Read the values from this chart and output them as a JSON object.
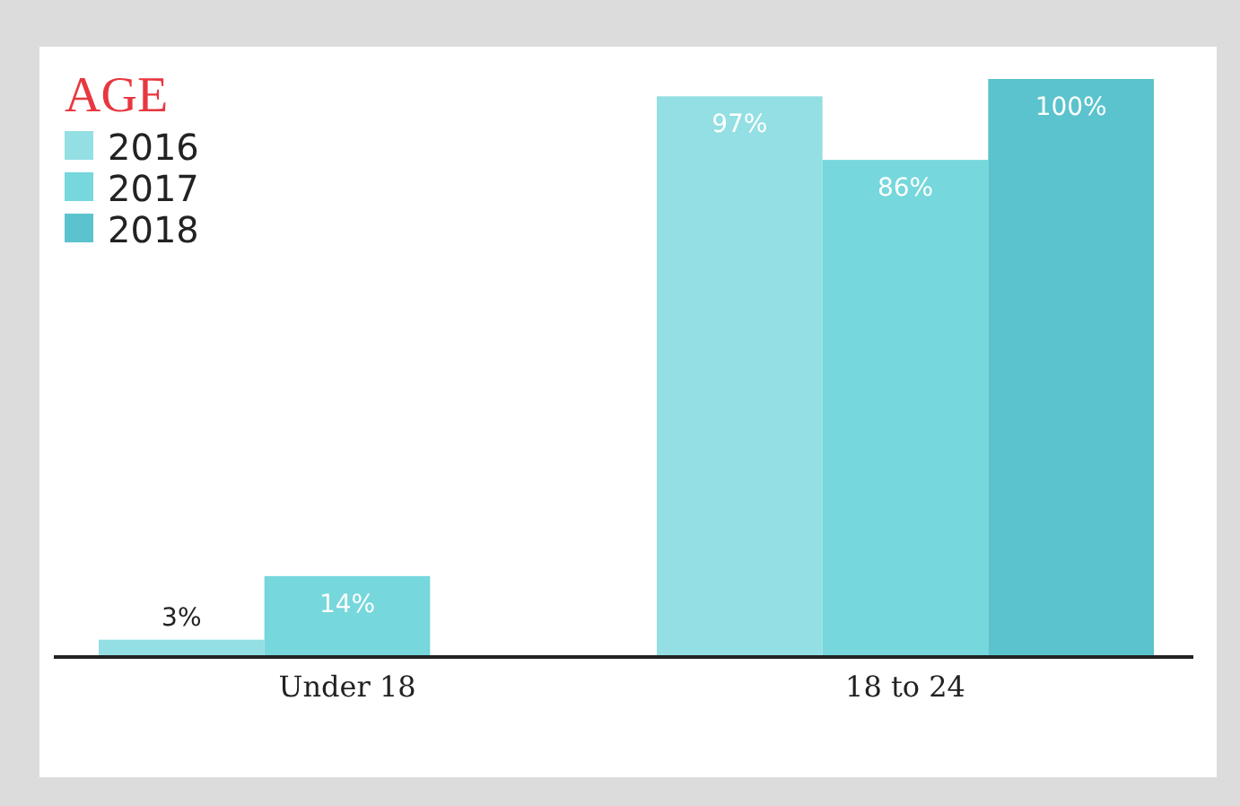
{
  "chart_data": {
    "type": "bar",
    "legend_title": "AGE",
    "legend": "top left",
    "categories": [
      "Under 18",
      "18 to 24"
    ],
    "series": [
      {
        "name": "2016",
        "color": "#93dfe3",
        "values": [
          3,
          97
        ],
        "value_labels": [
          "3%",
          "97%"
        ]
      },
      {
        "name": "2017",
        "color": "#76d7dc",
        "values": [
          14,
          86
        ],
        "value_labels": [
          "14%",
          "86%"
        ]
      },
      {
        "name": "2018",
        "color": "#5bc3cd",
        "values": [
          null,
          100
        ],
        "value_labels": [
          null,
          "100%"
        ]
      }
    ]
  }
}
